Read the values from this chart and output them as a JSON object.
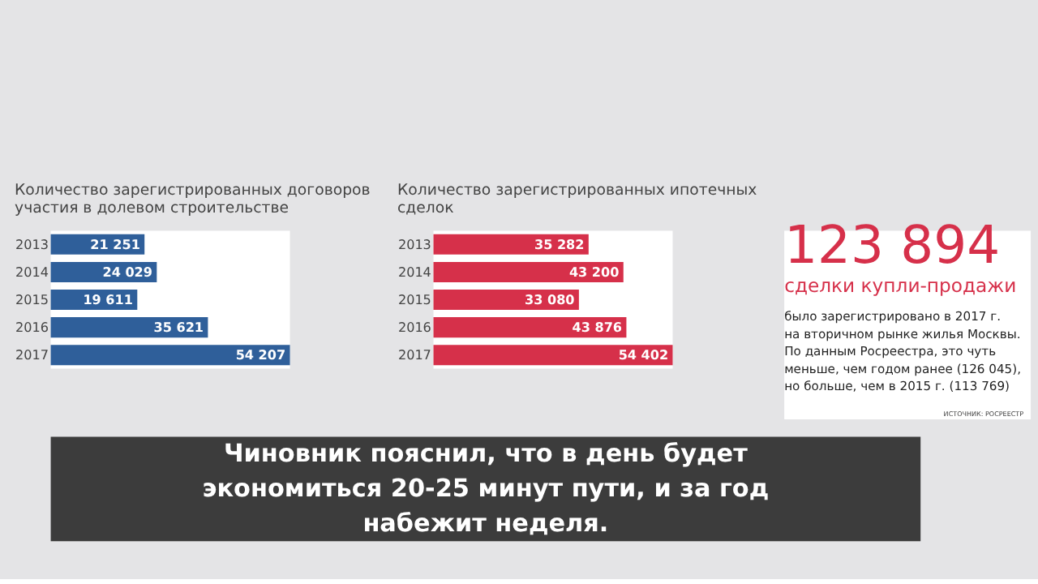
{
  "chart_data": [
    {
      "type": "bar",
      "orientation": "horizontal",
      "title": "Количество зарегистрированных договоров участия в долевом строительстве",
      "categories": [
        "2013",
        "2014",
        "2015",
        "2016",
        "2017"
      ],
      "values": [
        21251,
        24029,
        19611,
        35621,
        54207
      ],
      "value_labels": [
        "21 251",
        "24 029",
        "19 611",
        "35 621",
        "54 207"
      ],
      "color": "#2f5f9a",
      "tick_labels": "y"
    },
    {
      "type": "bar",
      "orientation": "horizontal",
      "title": "Количество зарегистрированных ипотечных сделок",
      "categories": [
        "2013",
        "2014",
        "2015",
        "2016",
        "2017"
      ],
      "values": [
        35282,
        43200,
        33080,
        43876,
        54402
      ],
      "value_labels": [
        "35 282",
        "43 200",
        "33 080",
        "43 876",
        "54 402"
      ],
      "color": "#d6304a",
      "tick_labels": "y"
    },
    {
      "type": "other",
      "title": "123 894",
      "subtitle": "сделки купли-продажи",
      "annotations": [
        "было зарегистрировано в 2017 г.",
        "на вторичном рынке жилья Москвы.",
        "По данным Росреестра, это чуть",
        "меньше, чем годом ранее (126 045),",
        "но больше, чем в 2015 г. (113 769)",
        "ИСТОЧНИК: РОСРЕЕСТР",
        "Чиновник пояснил, что в день будет экономиться 20-25 минут пути, и за год набежит неделя."
      ]
    }
  ]
}
